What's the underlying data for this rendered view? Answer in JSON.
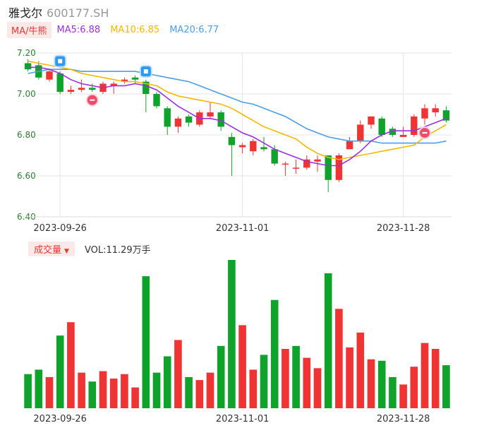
{
  "header": {
    "name": "雅戈尔",
    "code": "600177.SH"
  },
  "ma_legend": {
    "tag": "MA/牛熊",
    "ma5": {
      "label": "MA5:6.88",
      "color": "#9b30e0"
    },
    "ma10": {
      "label": "MA10:6.85",
      "color": "#f5b800"
    },
    "ma20": {
      "label": "MA20:6.77",
      "color": "#4a9eea"
    }
  },
  "volume_legend": {
    "tag": "成交量",
    "label": "VOL:11.29万手"
  },
  "colors": {
    "up": "#f03434",
    "down": "#0fa32c",
    "grid": "#e6e6e6"
  },
  "chart_data": [
    {
      "type": "candlestick",
      "ylim": [
        6.4,
        7.2
      ],
      "y_ticks": [
        "7.20",
        "7.00",
        "6.80",
        "6.60",
        "6.40"
      ],
      "x_tick_labels": [
        {
          "index": 3,
          "label": "2023-09-26"
        },
        {
          "index": 20,
          "label": "2023-11-01"
        },
        {
          "index": 35,
          "label": "2023-11-28"
        }
      ],
      "candles": [
        {
          "o": 7.15,
          "c": 7.12,
          "h": 7.17,
          "l": 7.11
        },
        {
          "o": 7.14,
          "c": 7.08,
          "h": 7.16,
          "l": 7.07
        },
        {
          "o": 7.07,
          "c": 7.11,
          "h": 7.12,
          "l": 7.06
        },
        {
          "o": 7.1,
          "c": 7.01,
          "h": 7.11,
          "l": 7.0
        },
        {
          "o": 7.01,
          "c": 7.02,
          "h": 7.04,
          "l": 7.0
        },
        {
          "o": 7.02,
          "c": 7.03,
          "h": 7.07,
          "l": 7.01
        },
        {
          "o": 7.03,
          "c": 7.02,
          "h": 7.05,
          "l": 7.01
        },
        {
          "o": 7.01,
          "c": 7.05,
          "h": 7.06,
          "l": 7.0
        },
        {
          "o": 7.04,
          "c": 7.05,
          "h": 7.06,
          "l": 7.0
        },
        {
          "o": 7.06,
          "c": 7.07,
          "h": 7.08,
          "l": 7.05
        },
        {
          "o": 7.08,
          "c": 7.07,
          "h": 7.09,
          "l": 7.05
        },
        {
          "o": 7.06,
          "c": 7.0,
          "h": 7.07,
          "l": 6.91
        },
        {
          "o": 7.0,
          "c": 6.94,
          "h": 7.01,
          "l": 6.93
        },
        {
          "o": 6.93,
          "c": 6.84,
          "h": 6.94,
          "l": 6.8
        },
        {
          "o": 6.84,
          "c": 6.88,
          "h": 6.89,
          "l": 6.81
        },
        {
          "o": 6.89,
          "c": 6.86,
          "h": 6.9,
          "l": 6.84
        },
        {
          "o": 6.85,
          "c": 6.91,
          "h": 6.92,
          "l": 6.84
        },
        {
          "o": 6.89,
          "c": 6.91,
          "h": 6.96,
          "l": 6.88
        },
        {
          "o": 6.91,
          "c": 6.84,
          "h": 6.92,
          "l": 6.82
        },
        {
          "o": 6.79,
          "c": 6.75,
          "h": 6.81,
          "l": 6.6
        },
        {
          "o": 6.74,
          "c": 6.75,
          "h": 6.76,
          "l": 6.71
        },
        {
          "o": 6.72,
          "c": 6.77,
          "h": 6.78,
          "l": 6.7
        },
        {
          "o": 6.74,
          "c": 6.73,
          "h": 6.79,
          "l": 6.72
        },
        {
          "o": 6.73,
          "c": 6.66,
          "h": 6.75,
          "l": 6.65
        },
        {
          "o": 6.66,
          "c": 6.66,
          "h": 6.67,
          "l": 6.6
        },
        {
          "o": 6.64,
          "c": 6.64,
          "h": 6.68,
          "l": 6.61
        },
        {
          "o": 6.64,
          "c": 6.68,
          "h": 6.7,
          "l": 6.63
        },
        {
          "o": 6.67,
          "c": 6.68,
          "h": 6.7,
          "l": 6.62
        },
        {
          "o": 6.7,
          "c": 6.58,
          "h": 6.7,
          "l": 6.52
        },
        {
          "o": 6.58,
          "c": 6.7,
          "h": 6.71,
          "l": 6.57
        },
        {
          "o": 6.73,
          "c": 6.77,
          "h": 6.79,
          "l": 6.73
        },
        {
          "o": 6.77,
          "c": 6.85,
          "h": 6.87,
          "l": 6.76
        },
        {
          "o": 6.85,
          "c": 6.89,
          "h": 6.89,
          "l": 6.83
        },
        {
          "o": 6.88,
          "c": 6.8,
          "h": 6.89,
          "l": 6.79
        },
        {
          "o": 6.83,
          "c": 6.8,
          "h": 6.84,
          "l": 6.79
        },
        {
          "o": 6.79,
          "c": 6.8,
          "h": 6.84,
          "l": 6.79
        },
        {
          "o": 6.8,
          "c": 6.89,
          "h": 6.9,
          "l": 6.79
        },
        {
          "o": 6.88,
          "c": 6.93,
          "h": 6.95,
          "l": 6.85
        },
        {
          "o": 6.91,
          "c": 6.93,
          "h": 6.95,
          "l": 6.89
        },
        {
          "o": 6.92,
          "c": 6.87,
          "h": 6.94,
          "l": 6.86
        }
      ],
      "ma5": [
        7.13,
        7.13,
        7.12,
        7.1,
        7.07,
        7.05,
        7.04,
        7.03,
        7.04,
        7.04,
        7.05,
        7.04,
        7.02,
        6.98,
        6.94,
        6.91,
        6.88,
        6.88,
        6.87,
        6.84,
        6.81,
        6.79,
        6.76,
        6.73,
        6.71,
        6.69,
        6.67,
        6.66,
        6.65,
        6.65,
        6.68,
        6.72,
        6.77,
        6.8,
        6.82,
        6.82,
        6.82,
        6.84,
        6.86,
        6.88
      ],
      "ma10": [
        7.16,
        7.15,
        7.14,
        7.13,
        7.12,
        7.1,
        7.09,
        7.08,
        7.07,
        7.06,
        7.06,
        7.05,
        7.04,
        7.01,
        6.99,
        6.98,
        6.97,
        6.96,
        6.95,
        6.93,
        6.9,
        6.87,
        6.84,
        6.82,
        6.8,
        6.78,
        6.74,
        6.71,
        6.69,
        6.68,
        6.69,
        6.7,
        6.71,
        6.72,
        6.73,
        6.74,
        6.75,
        6.79,
        6.82,
        6.85
      ],
      "ma20": [
        7.1,
        7.11,
        7.12,
        7.12,
        7.12,
        7.11,
        7.11,
        7.11,
        7.11,
        7.11,
        7.11,
        7.1,
        7.09,
        7.08,
        7.07,
        7.06,
        7.04,
        7.02,
        7.0,
        6.98,
        6.96,
        6.95,
        6.93,
        6.91,
        6.89,
        6.86,
        6.83,
        6.81,
        6.79,
        6.78,
        6.77,
        6.77,
        6.77,
        6.76,
        6.76,
        6.76,
        6.76,
        6.76,
        6.76,
        6.77
      ],
      "markers": [
        {
          "index": 3,
          "type": "blue-flag",
          "value": 7.16
        },
        {
          "index": 11,
          "type": "blue-flag",
          "value": 7.11
        },
        {
          "index": 6,
          "type": "red-bull",
          "value": 6.97
        },
        {
          "index": 37,
          "type": "red-bull",
          "value": 6.81
        }
      ]
    },
    {
      "type": "bar",
      "name": "成交量",
      "ylim": [
        0,
        100
      ],
      "values": [
        {
          "v": 23,
          "d": "down"
        },
        {
          "v": 26,
          "d": "down"
        },
        {
          "v": 21,
          "d": "up"
        },
        {
          "v": 49,
          "d": "down"
        },
        {
          "v": 58,
          "d": "up"
        },
        {
          "v": 24,
          "d": "up"
        },
        {
          "v": 18,
          "d": "down"
        },
        {
          "v": 25,
          "d": "up"
        },
        {
          "v": 20,
          "d": "up"
        },
        {
          "v": 23,
          "d": "up"
        },
        {
          "v": 14,
          "d": "up"
        },
        {
          "v": 89,
          "d": "down"
        },
        {
          "v": 24,
          "d": "down"
        },
        {
          "v": 35,
          "d": "down"
        },
        {
          "v": 46,
          "d": "up"
        },
        {
          "v": 21,
          "d": "down"
        },
        {
          "v": 19,
          "d": "up"
        },
        {
          "v": 24,
          "d": "up"
        },
        {
          "v": 42,
          "d": "down"
        },
        {
          "v": 100,
          "d": "down"
        },
        {
          "v": 56,
          "d": "up"
        },
        {
          "v": 26,
          "d": "up"
        },
        {
          "v": 36,
          "d": "down"
        },
        {
          "v": 73,
          "d": "down"
        },
        {
          "v": 40,
          "d": "up"
        },
        {
          "v": 42,
          "d": "down"
        },
        {
          "v": 34,
          "d": "up"
        },
        {
          "v": 27,
          "d": "up"
        },
        {
          "v": 91,
          "d": "down"
        },
        {
          "v": 67,
          "d": "up"
        },
        {
          "v": 41,
          "d": "up"
        },
        {
          "v": 51,
          "d": "up"
        },
        {
          "v": 33,
          "d": "up"
        },
        {
          "v": 32,
          "d": "down"
        },
        {
          "v": 21,
          "d": "down"
        },
        {
          "v": 16,
          "d": "up"
        },
        {
          "v": 28,
          "d": "up"
        },
        {
          "v": 44,
          "d": "up"
        },
        {
          "v": 40,
          "d": "up"
        },
        {
          "v": 29,
          "d": "down"
        }
      ],
      "x_tick_labels": [
        {
          "index": 3,
          "label": "2023-09-26"
        },
        {
          "index": 20,
          "label": "2023-11-01"
        },
        {
          "index": 35,
          "label": "2023-11-28"
        }
      ]
    }
  ]
}
